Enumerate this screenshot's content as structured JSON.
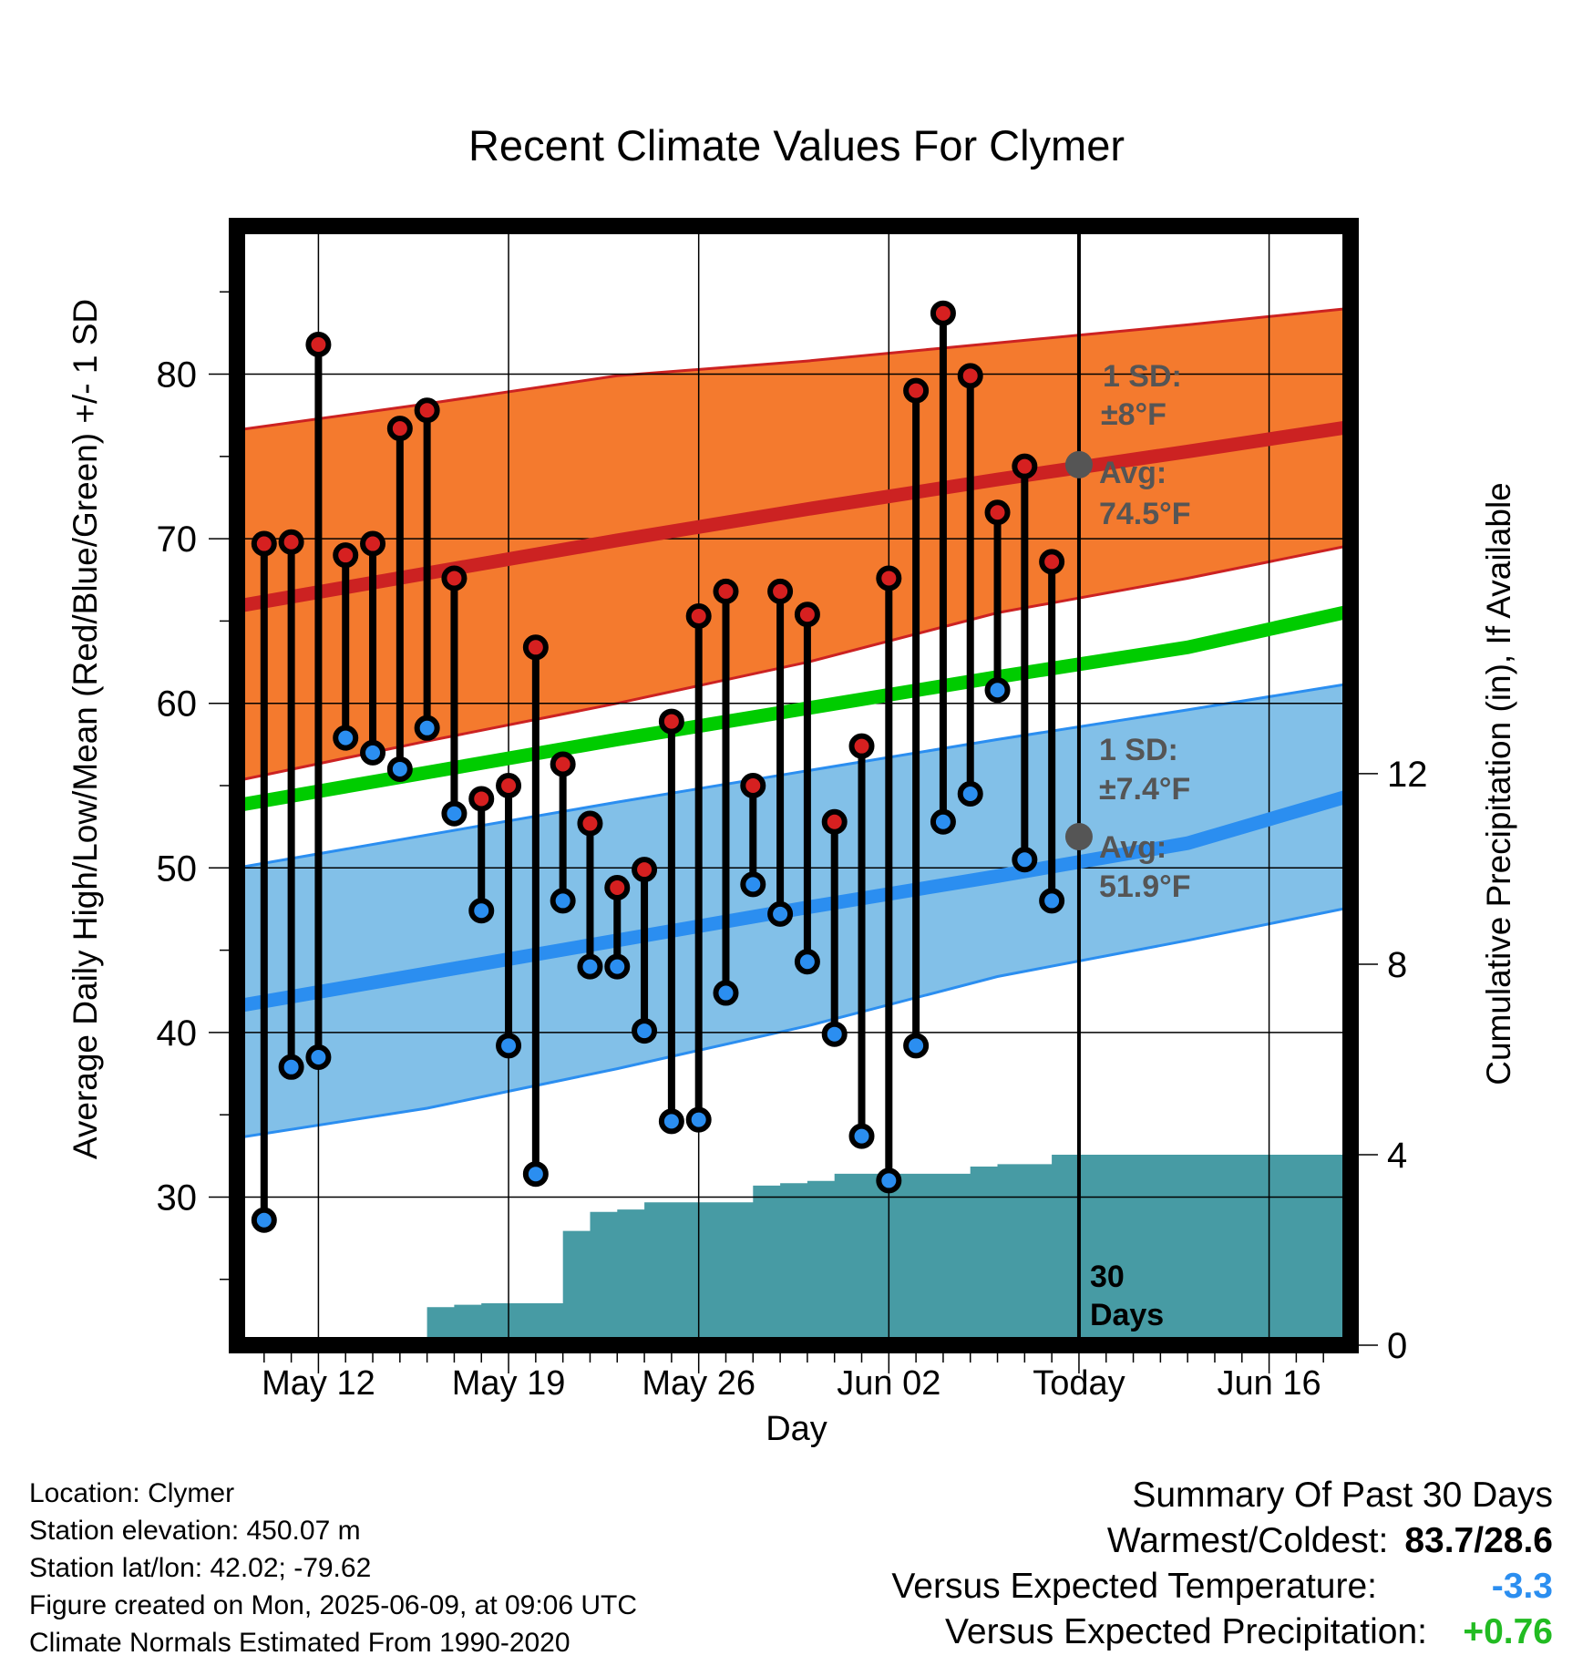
{
  "chart_data": {
    "type": "line",
    "title": "Recent Climate Values For Clymer",
    "xlabel": "Day",
    "ylabel": "Average Daily High/Low/Mean (Red/Blue/Green) +/- 1 SD",
    "y2label": "Cumulative Precipitation (in), If Available",
    "ylim": [
      21,
      89
    ],
    "y2lim": [
      0,
      23.5
    ],
    "y_ticks": [
      30,
      40,
      50,
      60,
      70,
      80
    ],
    "y2_ticks": [
      0,
      4,
      8,
      12
    ],
    "x_start": "2025-05-09",
    "x_end": "2025-06-19",
    "x_tick_labels": [
      {
        "date": "2025-05-12",
        "label": "May 12"
      },
      {
        "date": "2025-05-19",
        "label": "May 19"
      },
      {
        "date": "2025-05-26",
        "label": "May 26"
      },
      {
        "date": "2025-06-02",
        "label": "Jun 02"
      },
      {
        "date": "2025-06-09",
        "label": "Today"
      },
      {
        "date": "2025-06-16",
        "label": "Jun 16"
      }
    ],
    "today": "2025-06-09",
    "today_label": "30 Days",
    "grid": true,
    "colors": {
      "high": "#cc2222",
      "low": "#2b8ef0",
      "mean": "#00cc00",
      "high_band": "#f47a2e",
      "low_band": "#82c0e8",
      "precip": "#479ba4",
      "annotation": "#555555"
    },
    "daily": [
      {
        "date": "2025-05-10",
        "high": 69.7,
        "low": 28.6
      },
      {
        "date": "2025-05-11",
        "high": 69.8,
        "low": 37.9
      },
      {
        "date": "2025-05-12",
        "high": 81.8,
        "low": 38.5
      },
      {
        "date": "2025-05-13",
        "high": 69.0,
        "low": 57.9
      },
      {
        "date": "2025-05-14",
        "high": 69.7,
        "low": 57.0
      },
      {
        "date": "2025-05-15",
        "high": 76.7,
        "low": 56.0
      },
      {
        "date": "2025-05-16",
        "high": 77.8,
        "low": 58.5
      },
      {
        "date": "2025-05-17",
        "high": 67.6,
        "low": 53.3
      },
      {
        "date": "2025-05-18",
        "high": 54.2,
        "low": 47.4
      },
      {
        "date": "2025-05-19",
        "high": 55.0,
        "low": 39.2
      },
      {
        "date": "2025-05-20",
        "high": 63.4,
        "low": 31.4
      },
      {
        "date": "2025-05-21",
        "high": 56.3,
        "low": 48.0
      },
      {
        "date": "2025-05-22",
        "high": 52.7,
        "low": 44.0
      },
      {
        "date": "2025-05-23",
        "high": 48.8,
        "low": 44.0
      },
      {
        "date": "2025-05-24",
        "high": 49.9,
        "low": 40.1
      },
      {
        "date": "2025-05-25",
        "high": 58.9,
        "low": 34.6
      },
      {
        "date": "2025-05-26",
        "high": 65.3,
        "low": 34.7
      },
      {
        "date": "2025-05-27",
        "high": 66.8,
        "low": 42.4
      },
      {
        "date": "2025-05-28",
        "high": 55.0,
        "low": 49.0
      },
      {
        "date": "2025-05-29",
        "high": 66.8,
        "low": 47.2
      },
      {
        "date": "2025-05-30",
        "high": 65.4,
        "low": 44.3
      },
      {
        "date": "2025-05-31",
        "high": 52.8,
        "low": 39.9
      },
      {
        "date": "2025-06-01",
        "high": 57.4,
        "low": 33.7
      },
      {
        "date": "2025-06-02",
        "high": 67.6,
        "low": 31.0
      },
      {
        "date": "2025-06-03",
        "high": 79.0,
        "low": 39.2
      },
      {
        "date": "2025-06-04",
        "high": 83.7,
        "low": 52.8
      },
      {
        "date": "2025-06-05",
        "high": 79.9,
        "low": 54.5
      },
      {
        "date": "2025-06-06",
        "high": 71.6,
        "low": 60.8
      },
      {
        "date": "2025-06-07",
        "high": 74.4,
        "low": 50.5
      },
      {
        "date": "2025-06-08",
        "high": 68.6,
        "low": 48.0
      }
    ],
    "normals": {
      "x": [
        "2025-05-09",
        "2025-05-16",
        "2025-05-23",
        "2025-05-30",
        "2025-06-06",
        "2025-06-13",
        "2025-06-19"
      ],
      "avg_high": [
        65.9,
        67.9,
        69.9,
        71.8,
        73.6,
        75.3,
        76.8
      ],
      "avg_low": [
        41.6,
        43.6,
        45.6,
        47.6,
        49.5,
        51.5,
        54.4
      ],
      "avg_mean": [
        53.8,
        55.8,
        57.8,
        59.7,
        61.6,
        63.4,
        65.6
      ],
      "high_plus_sd": [
        76.6,
        78.2,
        79.9,
        80.8,
        81.9,
        83.0,
        84.0
      ],
      "high_minus_sd": [
        55.3,
        57.7,
        60.0,
        62.5,
        65.5,
        67.6,
        69.6
      ],
      "low_plus_sd": [
        50.0,
        52.0,
        54.0,
        55.9,
        57.8,
        59.6,
        61.2
      ],
      "low_minus_sd": [
        33.6,
        35.4,
        37.8,
        40.4,
        43.4,
        45.6,
        47.6
      ]
    },
    "precip_cumulative": [
      {
        "date": "2025-05-15",
        "value": 0.0
      },
      {
        "date": "2025-05-16",
        "value": 0.8
      },
      {
        "date": "2025-05-17",
        "value": 0.85
      },
      {
        "date": "2025-05-18",
        "value": 0.88
      },
      {
        "date": "2025-05-19",
        "value": 0.88
      },
      {
        "date": "2025-05-20",
        "value": 0.88
      },
      {
        "date": "2025-05-21",
        "value": 2.4
      },
      {
        "date": "2025-05-22",
        "value": 2.8
      },
      {
        "date": "2025-05-23",
        "value": 2.85
      },
      {
        "date": "2025-05-24",
        "value": 3.0
      },
      {
        "date": "2025-05-25",
        "value": 3.0
      },
      {
        "date": "2025-05-26",
        "value": 3.0
      },
      {
        "date": "2025-05-27",
        "value": 3.0
      },
      {
        "date": "2025-05-28",
        "value": 3.35
      },
      {
        "date": "2025-05-29",
        "value": 3.4
      },
      {
        "date": "2025-05-30",
        "value": 3.45
      },
      {
        "date": "2025-05-31",
        "value": 3.6
      },
      {
        "date": "2025-06-01",
        "value": 3.6
      },
      {
        "date": "2025-06-02",
        "value": 3.6
      },
      {
        "date": "2025-06-03",
        "value": 3.6
      },
      {
        "date": "2025-06-04",
        "value": 3.6
      },
      {
        "date": "2025-06-05",
        "value": 3.75
      },
      {
        "date": "2025-06-06",
        "value": 3.8
      },
      {
        "date": "2025-06-07",
        "value": 3.8
      },
      {
        "date": "2025-06-08",
        "value": 4.0
      },
      {
        "date": "2025-06-09",
        "value": 4.0
      },
      {
        "date": "2025-06-19",
        "value": 4.0
      }
    ],
    "annotations": {
      "high_sd_title": "1 SD:",
      "high_sd_value": "±8°F",
      "high_avg_title": "Avg:",
      "high_avg_value": "74.5°F",
      "low_sd_title": "1 SD:",
      "low_sd_value": "±7.4°F",
      "low_avg_title": "Avg:",
      "low_avg_value": "51.9°F",
      "today_high_avg": 74.5,
      "today_low_avg": 51.9
    }
  },
  "footer": {
    "location": "Location: Clymer",
    "elevation": "Station elevation: 450.07 m",
    "latlon": "Station lat/lon: 42.02; -79.62",
    "created": "Figure created on Mon, 2025-06-09, at 09:06 UTC",
    "normals_source": "Climate Normals Estimated From 1990-2020"
  },
  "summary": {
    "title": "Summary Of Past 30 Days",
    "warmest_coldest_label": "Warmest/Coldest:",
    "warmest_coldest_value": "83.7/28.6",
    "temp_label": "Versus Expected Temperature:",
    "temp_value": "-3.3",
    "temp_color": "#2b8ef0",
    "precip_label": "Versus Expected Precipitation:",
    "precip_value": "+0.76",
    "precip_color": "#22bb22"
  }
}
